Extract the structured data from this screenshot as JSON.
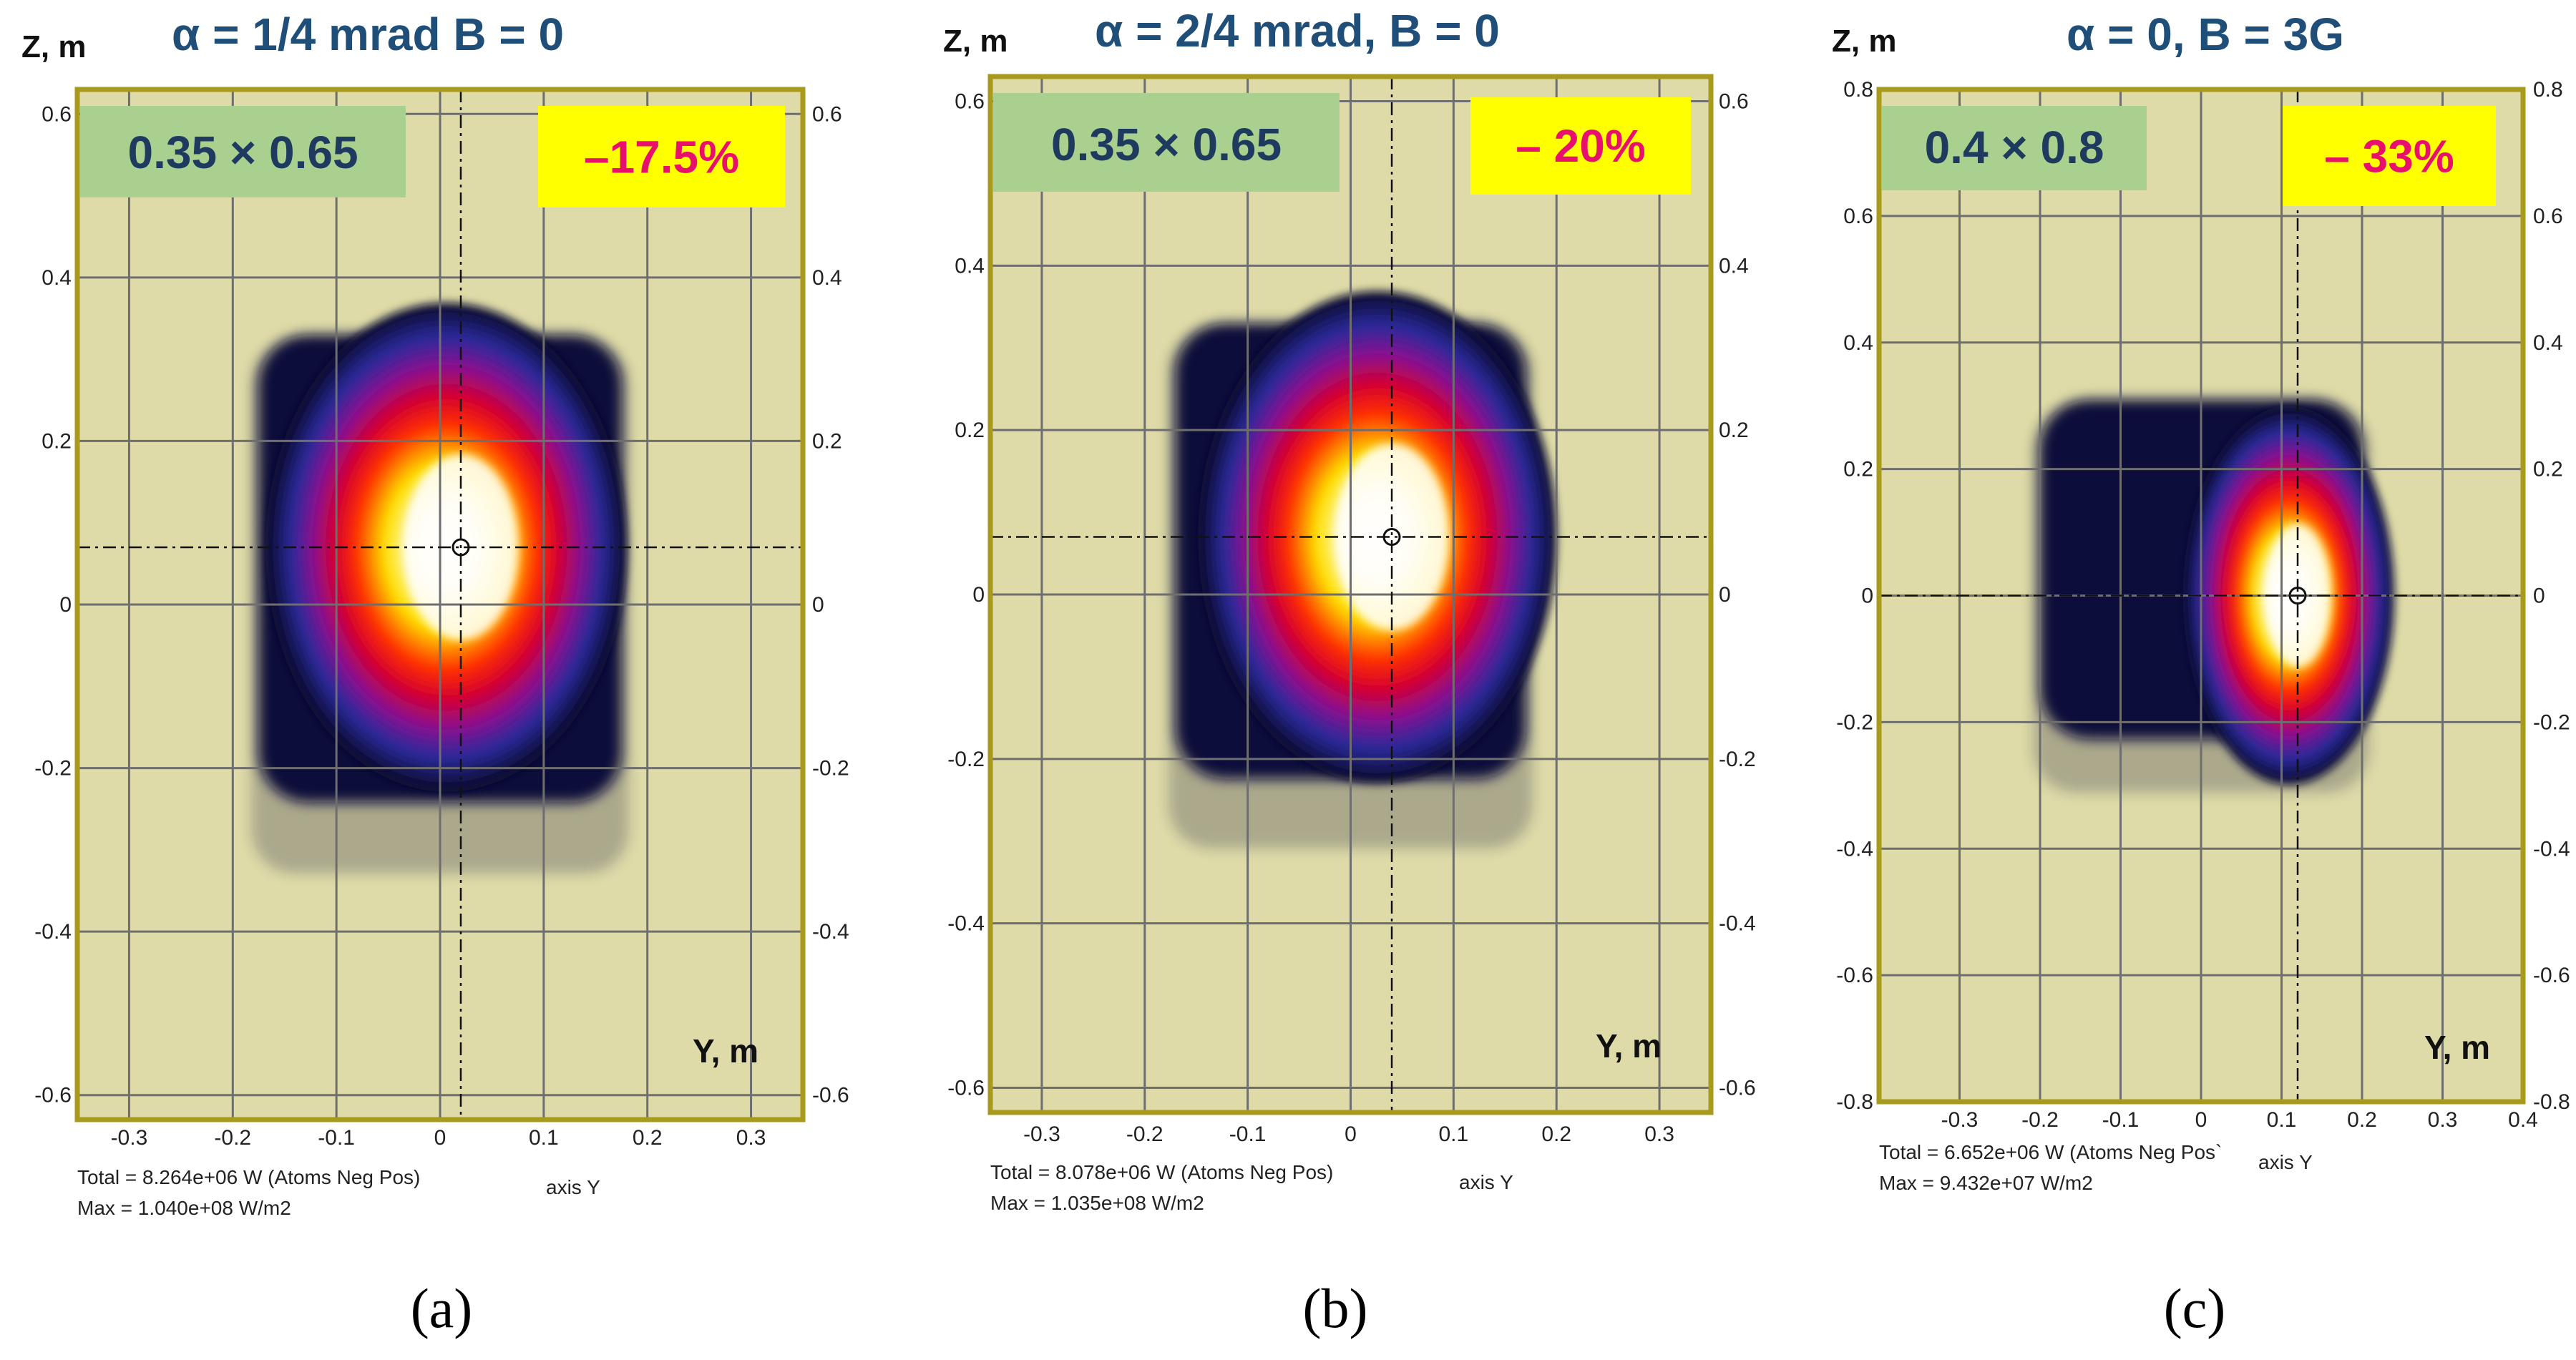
{
  "colors": {
    "plot_bg": "#dedba8",
    "frame": "#a89a1c",
    "grid": "#6e6e6e",
    "dim_badge": "#a9d08e",
    "pct_badge": "#ffff00"
  },
  "panels": [
    {
      "title": "α = 1/4 mrad  B = 0",
      "zlabel": "Z, m",
      "ylabel": "Y, m",
      "dims_badge": "0.35 × 0.65",
      "percent_badge": "–17.5%",
      "total_line": "Total =   8.264e+06 W (Atoms Neg Pos)",
      "axis_note": "axis Y",
      "max_line": "Max =    1.040e+08 W/m2",
      "subfig": "(a)"
    },
    {
      "title": "α = 2/4 mrad,  B = 0",
      "zlabel": "Z, m",
      "ylabel": "Y, m",
      "dims_badge": "0.35 × 0.65",
      "percent_badge": "– 20%",
      "total_line": "Total =   8.078e+06 W (Atoms Neg Pos)",
      "axis_note": "axis Y",
      "max_line": "Max =    1.035e+08 W/m2",
      "subfig": "(b)"
    },
    {
      "title": "α = 0, B = 3G",
      "zlabel": "Z, m",
      "ylabel": "Y, m",
      "dims_badge": "0.4 × 0.8",
      "percent_badge": "– 33%",
      "total_line": "Total =   6.652e+06 W (Atoms Neg Pos`",
      "axis_note": "axis Y",
      "max_line": "Max =    9.432e+07 W/m2",
      "subfig": "(c)"
    }
  ],
  "chart_data": [
    {
      "type": "heatmap",
      "title": "α = 1/4 mrad  B = 0",
      "xlabel": "Y, m",
      "ylabel": "Z, m",
      "xlim": [
        -0.35,
        0.35
      ],
      "ylim": [
        -0.63,
        0.63
      ],
      "xticks": [
        -0.3,
        -0.2,
        -0.1,
        0,
        0.1,
        0.2,
        0.3
      ],
      "xtick_labels": [
        "-0.3",
        "-0.2",
        "-0.1",
        "0",
        "0.1",
        "0.2",
        "0.3"
      ],
      "yticks": [
        -0.6,
        -0.4,
        -0.2,
        0,
        0.2,
        0.4,
        0.6
      ],
      "ytick_labels": [
        "-0.6",
        "-0.4",
        "-0.2",
        "0",
        "0.2",
        "0.4",
        "0.6"
      ],
      "grid": true,
      "footprint": {
        "y_min": -0.175,
        "y_max": 0.175,
        "z_min": -0.32,
        "z_max": 0.33
      },
      "peak": {
        "y": 0.02,
        "z": 0.07
      },
      "core_halfwidth": {
        "y": 0.06,
        "z": 0.13
      }
    },
    {
      "type": "heatmap",
      "title": "α = 2/4 mrad,  B = 0",
      "xlabel": "Y, m",
      "ylabel": "Z, m",
      "xlim": [
        -0.35,
        0.35
      ],
      "ylim": [
        -0.63,
        0.63
      ],
      "xticks": [
        -0.3,
        -0.2,
        -0.1,
        0,
        0.1,
        0.2,
        0.3
      ],
      "xtick_labels": [
        "-0.3",
        "-0.2",
        "-0.1",
        "0",
        "0.1",
        "0.2",
        "0.3"
      ],
      "yticks": [
        -0.6,
        -0.4,
        -0.2,
        0,
        0.2,
        0.4,
        0.6
      ],
      "ytick_labels": [
        "-0.6",
        "-0.4",
        "-0.2",
        "0",
        "0.2",
        "0.4",
        "0.6"
      ],
      "grid": true,
      "footprint": {
        "y_min": -0.17,
        "y_max": 0.17,
        "z_min": -0.3,
        "z_max": 0.33
      },
      "peak": {
        "y": 0.04,
        "z": 0.07
      },
      "core_halfwidth": {
        "y": 0.06,
        "z": 0.13
      }
    },
    {
      "type": "heatmap",
      "title": "α = 0, B = 3G",
      "xlabel": "Y, m",
      "ylabel": "Z, m",
      "xlim": [
        -0.4,
        0.4
      ],
      "ylim": [
        -0.8,
        0.8
      ],
      "xticks": [
        -0.3,
        -0.2,
        -0.1,
        0,
        0.1,
        0.2,
        0.3,
        0.4
      ],
      "xtick_labels": [
        "-0.3",
        "-0.2",
        "-0.1",
        "0",
        "0.1",
        "0.2",
        "0.3",
        "0.4"
      ],
      "yticks": [
        -0.8,
        -0.6,
        -0.4,
        -0.2,
        0,
        0.2,
        0.4,
        0.6,
        0.8
      ],
      "ytick_labels": [
        "-0.8",
        "-0.6",
        "-0.4",
        "-0.2",
        "0",
        "0.2",
        "0.4",
        "0.6",
        "0.8"
      ],
      "grid": true,
      "footprint": {
        "y_min": -0.2,
        "y_max": 0.2,
        "z_min": -0.3,
        "z_max": 0.31
      },
      "peak": {
        "y": 0.12,
        "z": 0.0
      },
      "core_halfwidth": {
        "y": 0.045,
        "z": 0.13
      }
    }
  ]
}
